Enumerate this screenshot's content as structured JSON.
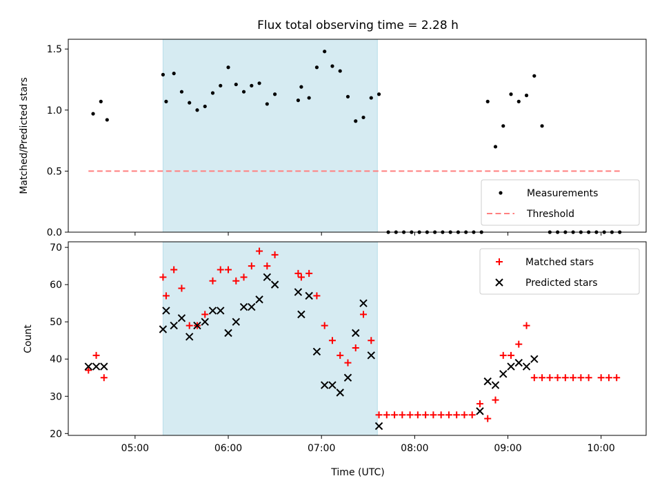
{
  "chart_data": [
    {
      "type": "scatter",
      "title": "Flux total observing time = 2.28 h",
      "ylabel": "Matched/Predicted stars",
      "ylim": [
        0,
        1.58
      ],
      "yticks": [
        "0.0",
        "0.5",
        "1.0",
        "1.5"
      ],
      "shaded_interval": [
        "05:18",
        "07:36"
      ],
      "grid": false,
      "legend_position": "lower-right",
      "series": [
        {
          "name": "Measurements",
          "marker": "dot",
          "color": "#000000",
          "points": [
            [
              "04:33",
              0.97
            ],
            [
              "04:38",
              1.07
            ],
            [
              "04:42",
              0.92
            ],
            [
              "05:18",
              1.29
            ],
            [
              "05:20",
              1.07
            ],
            [
              "05:25",
              1.3
            ],
            [
              "05:30",
              1.15
            ],
            [
              "05:35",
              1.06
            ],
            [
              "05:40",
              1.0
            ],
            [
              "05:45",
              1.03
            ],
            [
              "05:50",
              1.14
            ],
            [
              "05:55",
              1.2
            ],
            [
              "06:00",
              1.35
            ],
            [
              "06:05",
              1.21
            ],
            [
              "06:10",
              1.15
            ],
            [
              "06:15",
              1.2
            ],
            [
              "06:20",
              1.22
            ],
            [
              "06:25",
              1.05
            ],
            [
              "06:30",
              1.13
            ],
            [
              "06:45",
              1.08
            ],
            [
              "06:47",
              1.19
            ],
            [
              "06:52",
              1.1
            ],
            [
              "06:57",
              1.35
            ],
            [
              "07:02",
              1.48
            ],
            [
              "07:07",
              1.36
            ],
            [
              "07:12",
              1.32
            ],
            [
              "07:17",
              1.11
            ],
            [
              "07:22",
              0.91
            ],
            [
              "07:27",
              0.94
            ],
            [
              "07:32",
              1.1
            ],
            [
              "07:37",
              1.13
            ],
            [
              "07:43",
              0.0
            ],
            [
              "07:48",
              0.0
            ],
            [
              "07:53",
              0.0
            ],
            [
              "07:58",
              0.0
            ],
            [
              "08:03",
              0.0
            ],
            [
              "08:08",
              0.0
            ],
            [
              "08:13",
              0.0
            ],
            [
              "08:18",
              0.0
            ],
            [
              "08:23",
              0.0
            ],
            [
              "08:28",
              0.0
            ],
            [
              "08:33",
              0.0
            ],
            [
              "08:38",
              0.0
            ],
            [
              "08:43",
              0.0
            ],
            [
              "08:47",
              1.07
            ],
            [
              "08:52",
              0.7
            ],
            [
              "08:57",
              0.87
            ],
            [
              "09:02",
              1.13
            ],
            [
              "09:07",
              1.07
            ],
            [
              "09:12",
              1.12
            ],
            [
              "09:17",
              1.28
            ],
            [
              "09:22",
              0.87
            ],
            [
              "09:27",
              0.0
            ],
            [
              "09:32",
              0.0
            ],
            [
              "09:37",
              0.0
            ],
            [
              "09:42",
              0.0
            ],
            [
              "09:47",
              0.0
            ],
            [
              "09:52",
              0.0
            ],
            [
              "09:57",
              0.0
            ],
            [
              "10:02",
              0.0
            ],
            [
              "10:07",
              0.0
            ],
            [
              "10:12",
              0.0
            ]
          ]
        },
        {
          "name": "Threshold",
          "marker": "dashed-line",
          "color": "#ff7f7f",
          "points": [
            [
              "04:30",
              0.5
            ],
            [
              "10:12",
              0.5
            ]
          ]
        }
      ]
    },
    {
      "type": "scatter",
      "title": "",
      "xlabel": "Time (UTC)",
      "ylabel": "Count",
      "ylim": [
        19.5,
        71.5
      ],
      "xticks": [
        "05:00",
        "06:00",
        "07:00",
        "08:00",
        "09:00",
        "10:00"
      ],
      "yticks": [
        "20",
        "30",
        "40",
        "50",
        "60",
        "70"
      ],
      "shaded_interval": [
        "05:18",
        "07:36"
      ],
      "grid": false,
      "legend_position": "upper-right",
      "series": [
        {
          "name": "Matched stars",
          "marker": "plus",
          "color": "#ff0000",
          "points": [
            [
              "04:30",
              37
            ],
            [
              "04:35",
              41
            ],
            [
              "04:40",
              35
            ],
            [
              "05:18",
              62
            ],
            [
              "05:20",
              57
            ],
            [
              "05:25",
              64
            ],
            [
              "05:30",
              59
            ],
            [
              "05:35",
              49
            ],
            [
              "05:40",
              49
            ],
            [
              "05:45",
              52
            ],
            [
              "05:50",
              61
            ],
            [
              "05:55",
              64
            ],
            [
              "06:00",
              64
            ],
            [
              "06:05",
              61
            ],
            [
              "06:10",
              62
            ],
            [
              "06:15",
              65
            ],
            [
              "06:20",
              69
            ],
            [
              "06:25",
              65
            ],
            [
              "06:30",
              68
            ],
            [
              "06:45",
              63
            ],
            [
              "06:47",
              62
            ],
            [
              "06:52",
              63
            ],
            [
              "06:57",
              57
            ],
            [
              "07:02",
              49
            ],
            [
              "07:07",
              45
            ],
            [
              "07:12",
              41
            ],
            [
              "07:17",
              39
            ],
            [
              "07:22",
              43
            ],
            [
              "07:27",
              52
            ],
            [
              "07:32",
              45
            ],
            [
              "07:37",
              25
            ],
            [
              "07:42",
              25
            ],
            [
              "07:47",
              25
            ],
            [
              "07:52",
              25
            ],
            [
              "07:57",
              25
            ],
            [
              "08:02",
              25
            ],
            [
              "08:07",
              25
            ],
            [
              "08:12",
              25
            ],
            [
              "08:17",
              25
            ],
            [
              "08:22",
              25
            ],
            [
              "08:27",
              25
            ],
            [
              "08:32",
              25
            ],
            [
              "08:37",
              25
            ],
            [
              "08:42",
              28
            ],
            [
              "08:47",
              24
            ],
            [
              "08:52",
              29
            ],
            [
              "08:57",
              41
            ],
            [
              "09:02",
              41
            ],
            [
              "09:07",
              44
            ],
            [
              "09:12",
              49
            ],
            [
              "09:17",
              35
            ],
            [
              "09:22",
              35
            ],
            [
              "09:27",
              35
            ],
            [
              "09:32",
              35
            ],
            [
              "09:37",
              35
            ],
            [
              "09:42",
              35
            ],
            [
              "09:47",
              35
            ],
            [
              "09:52",
              35
            ],
            [
              "10:00",
              35
            ],
            [
              "10:05",
              35
            ],
            [
              "10:10",
              35
            ]
          ]
        },
        {
          "name": "Predicted stars",
          "marker": "x",
          "color": "#000000",
          "points": [
            [
              "04:30",
              38
            ],
            [
              "04:35",
              38
            ],
            [
              "04:40",
              38
            ],
            [
              "05:18",
              48
            ],
            [
              "05:20",
              53
            ],
            [
              "05:25",
              49
            ],
            [
              "05:30",
              51
            ],
            [
              "05:35",
              46
            ],
            [
              "05:40",
              49
            ],
            [
              "05:45",
              50
            ],
            [
              "05:50",
              53
            ],
            [
              "05:55",
              53
            ],
            [
              "06:00",
              47
            ],
            [
              "06:05",
              50
            ],
            [
              "06:10",
              54
            ],
            [
              "06:15",
              54
            ],
            [
              "06:20",
              56
            ],
            [
              "06:25",
              62
            ],
            [
              "06:30",
              60
            ],
            [
              "06:45",
              58
            ],
            [
              "06:47",
              52
            ],
            [
              "06:52",
              57
            ],
            [
              "06:57",
              42
            ],
            [
              "07:02",
              33
            ],
            [
              "07:07",
              33
            ],
            [
              "07:12",
              31
            ],
            [
              "07:17",
              35
            ],
            [
              "07:22",
              47
            ],
            [
              "07:27",
              55
            ],
            [
              "07:32",
              41
            ],
            [
              "07:37",
              22
            ],
            [
              "08:42",
              26
            ],
            [
              "08:47",
              34
            ],
            [
              "08:52",
              33
            ],
            [
              "08:57",
              36
            ],
            [
              "09:02",
              38
            ],
            [
              "09:07",
              39
            ],
            [
              "09:12",
              38
            ],
            [
              "09:17",
              40
            ]
          ]
        }
      ]
    }
  ]
}
